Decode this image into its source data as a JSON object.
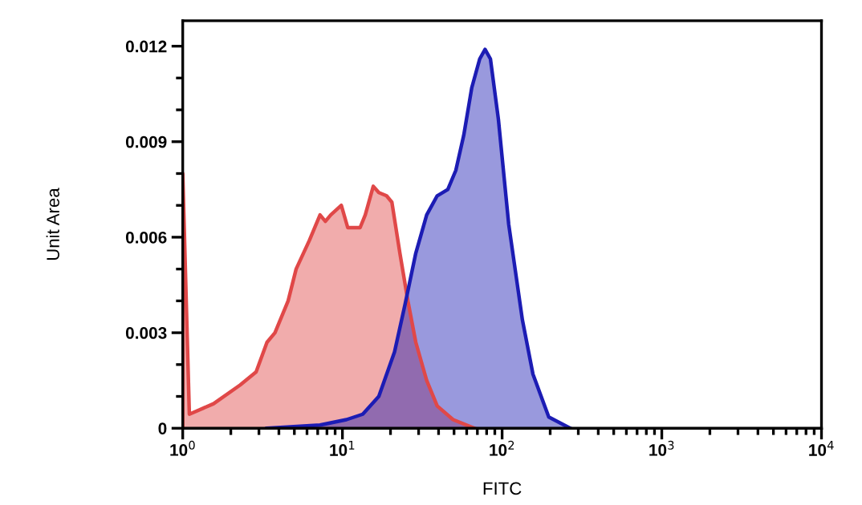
{
  "chart_data": {
    "type": "area",
    "xlabel": "FITC",
    "ylabel": "Unit Area",
    "log": "x",
    "grid": false,
    "legend": false,
    "xlim": [
      1,
      10000
    ],
    "ylim": [
      0,
      0.0128
    ],
    "xticks": [
      {
        "value": 1,
        "label": "10$^{0}$"
      },
      {
        "value": 10,
        "label": "10$^{1}$"
      },
      {
        "value": 100,
        "label": "10$^{2}$"
      },
      {
        "value": 1000,
        "label": "10$^{3}$"
      },
      {
        "value": 10000,
        "label": "10$^{4}$"
      },
      {
        "value": 2,
        "label": null
      },
      {
        "value": 3,
        "label": null
      },
      {
        "value": 4,
        "label": null
      },
      {
        "value": 5,
        "label": null
      },
      {
        "value": 6,
        "label": null
      },
      {
        "value": 7,
        "label": null
      },
      {
        "value": 8,
        "label": null
      },
      {
        "value": 9,
        "label": null
      },
      {
        "value": 20,
        "label": null
      },
      {
        "value": 30,
        "label": null
      },
      {
        "value": 40,
        "label": null
      },
      {
        "value": 50,
        "label": null
      },
      {
        "value": 60,
        "label": null
      },
      {
        "value": 70,
        "label": null
      },
      {
        "value": 80,
        "label": null
      },
      {
        "value": 90,
        "label": null
      },
      {
        "value": 200,
        "label": null
      },
      {
        "value": 300,
        "label": null
      },
      {
        "value": 400,
        "label": null
      },
      {
        "value": 500,
        "label": null
      },
      {
        "value": 600,
        "label": null
      },
      {
        "value": 700,
        "label": null
      },
      {
        "value": 800,
        "label": null
      },
      {
        "value": 900,
        "label": null
      },
      {
        "value": 2000,
        "label": null
      },
      {
        "value": 3000,
        "label": null
      },
      {
        "value": 4000,
        "label": null
      },
      {
        "value": 5000,
        "label": null
      },
      {
        "value": 6000,
        "label": null
      },
      {
        "value": 7000,
        "label": null
      },
      {
        "value": 8000,
        "label": null
      },
      {
        "value": 9000,
        "label": null
      }
    ],
    "yticks": [
      0,
      0.003,
      0.006,
      0.009,
      0.012,
      {
        "value": 0.001,
        "label": null
      },
      {
        "value": 0.002,
        "label": null
      },
      {
        "value": 0.004,
        "label": null
      },
      {
        "value": 0.005,
        "label": null
      },
      {
        "value": 0.007,
        "label": null
      },
      {
        "value": 0.008,
        "label": null
      },
      {
        "value": 0.01,
        "label": null
      },
      {
        "value": 0.011,
        "label": null
      }
    ],
    "series": [
      {
        "color": "#e04848",
        "x": [
          1.0,
          1.0,
          1.1,
          1.56,
          2.29,
          2.88,
          3.37,
          3.78,
          4.57,
          5.13,
          6.21,
          7.24,
          7.82,
          8.45,
          9.84,
          10.8,
          12.9,
          13.9,
          15.6,
          16.9,
          18.9,
          20.4,
          22.9,
          25.7,
          28.8,
          33.7,
          39.2,
          49.3,
          67.1
        ],
        "values": [
          0,
          0.008,
          0.00044,
          0.00077,
          0.00136,
          0.00177,
          0.0027,
          0.003,
          0.004,
          0.005,
          0.0059,
          0.0067,
          0.0065,
          0.0067,
          0.007,
          0.0063,
          0.0063,
          0.0067,
          0.0076,
          0.0074,
          0.0073,
          0.0071,
          0.0055,
          0.004,
          0.0027,
          0.0015,
          0.0007,
          0.00027,
          0
        ]
      },
      {
        "color": "#1c1cb4",
        "x": [
          3.37,
          7.24,
          10.6,
          13.4,
          16.9,
          21.2,
          24.7,
          28.8,
          33.7,
          39.2,
          45.7,
          51.3,
          57.5,
          64.6,
          72.4,
          78.2,
          84.5,
          94.8,
          110,
          134,
          156,
          196,
          267
        ],
        "values": [
          0,
          0.0001,
          0.00027,
          0.00044,
          0.001,
          0.0024,
          0.0039,
          0.0055,
          0.0067,
          0.0073,
          0.0075,
          0.0081,
          0.0092,
          0.0107,
          0.0116,
          0.0119,
          0.0116,
          0.0097,
          0.0064,
          0.0034,
          0.0017,
          0.00035,
          0
        ]
      }
    ]
  }
}
